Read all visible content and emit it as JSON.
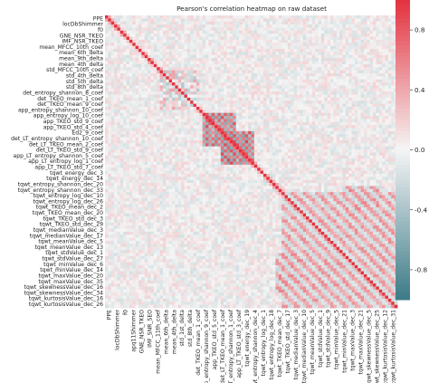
{
  "chart_data": {
    "type": "heatmap",
    "title": "Pearson's correlation heatmap on raw dataset",
    "xlabel": "",
    "ylabel": "",
    "colormap": {
      "low": "#3b7a87",
      "mid": "#f5f5f5",
      "high": "#e3323f"
    },
    "value_range": [
      -1.0,
      1.0
    ],
    "colorbar_ticks": [
      {
        "value": 0.8,
        "label": "0.8"
      },
      {
        "value": 0.4,
        "label": "0.4"
      },
      {
        "value": 0.0,
        "label": "0.0"
      },
      {
        "value": -0.4,
        "label": "-0.4"
      },
      {
        "value": -0.8,
        "label": "-0.8"
      }
    ],
    "y_tick_labels": [
      "PPE",
      "locDbShimmer",
      "f0",
      "GNE_NSR_TKEO",
      "IMF_NSR_TKEO",
      "mean_MFCC_10th_coef",
      "mean_6th_delta",
      "mean_9th_delta",
      "mean_4th_delta",
      "std_MFCC_10th_coef",
      "std_4th_delta",
      "std_5th_delta",
      "std_8th_delta",
      "det_entropy_shannon_8_coef",
      "det_TKEO_mean_1_coef",
      "det_TKEO_mean_9_coef",
      "app_entropy_shannon_10_coef",
      "app_entropy_log_10_coef",
      "app_TKEO_std_9_coef",
      "app_TKEO_std_4_coef",
      "Ed2_9_coef",
      "det_LT_entropy_shannon_10_coef",
      "det_LT_TKEO_mean_2_coef",
      "det_LT_TKEO_std_9_coef",
      "app_LT_entropy_shannon_5_coef",
      "app_LT_entropy_log_1_coef",
      "app_LT_TKEO_std_7_coef",
      "tqwt_energy_dec_3",
      "tqwt_energy_dec_14",
      "tqwt_entropy_shannon_dec_20",
      "tqwt_entropy_shannon_dec_33",
      "tqwt_entropy_log_dec_10",
      "tqwt_entropy_log_dec_26",
      "tqwt_TKEO_mean_dec_2",
      "tqwt_TKEO_mean_dec_20",
      "tqwt_TKEO_std_dec_3",
      "tqwt_TKEO_std_dec_29",
      "tqwt_medianValue_dec_3",
      "tqwt_medianValue_dec_17",
      "tqwt_meanValue_dec_5",
      "tqwt_meanValue_dec_13",
      "tqwt_stdValue_dec_1",
      "tqwt_stdValue_dec_27",
      "tqwt_minValue_dec_6",
      "tqwt_minValue_dec_14",
      "tqwt_maxValue_dec_20",
      "tqwt_maxValue_dec_35",
      "tqwt_skewnessValue_dec_16",
      "tqwt_skewnessValue_dec_34",
      "tqwt_kurtosisValue_dec_16",
      "tqwt_kurtosisValue_dec_26"
    ],
    "x_tick_labels": [
      "PPE",
      "locDbShimmer",
      "f0",
      "apq11Shimmer",
      "GNE_NSR_TKEO",
      "IMF_SNR_SEO",
      "mean_MFCC_11th_coef",
      "mean_6th_delta",
      "mean_4th_delta",
      "std_1st_delta",
      "std_8th_delta",
      "det_TKEO_mean_1_coef",
      "app_entropy_shannon_9_coef",
      "app_TKEO_std_5_coef",
      "det_LT_TKEO_mean_1_coef",
      "app_LT_entropy_shannon_1_coef",
      "app_LT_TKEO_std_3_coef",
      "tqwt_energy_dec_19",
      "tqwt_entropy_shannon_dec_4",
      "tqwt_entropy_log_dec_1",
      "tqwt_entropy_log_dec_18",
      "tqwt_TKEO_mean_dec_7",
      "tqwt_TKEO_std_dec_17",
      "tqwt_medianValue_dec_3",
      "tqwt_medianValue_dec_10",
      "tqwt_meanValue_dec_5",
      "tqwt_stdValue_dec_1",
      "tqwt_stdValue_dec_9",
      "tqwt_minValue_dec_5",
      "tqwt_minValue_dec_21",
      "tqwt_maxValue_dec_3",
      "tqwt_maxValue_dec_21",
      "tqwt_skewnessValue_dec_5",
      "tqwt_skewnessValue_dec_25",
      "tqwt_kurtosisValue_dec_12",
      "tqwt_kurtosisValue_dec_31"
    ],
    "matrix_size": 96,
    "diagonal_value": 1.0,
    "blocks": [
      {
        "rows": [
          32,
          42
        ],
        "cols": [
          32,
          42
        ],
        "value": 0.85,
        "pattern": "checker"
      },
      {
        "rows": [
          38,
          48
        ],
        "cols": [
          38,
          48
        ],
        "value": 0.9,
        "pattern": "checker"
      },
      {
        "rows": [
          58,
          95
        ],
        "cols": [
          58,
          95
        ],
        "value": 0.55,
        "pattern": "diagonal-bands"
      },
      {
        "rows": [
          56,
          66
        ],
        "cols": [
          78,
          90
        ],
        "value": 0.6,
        "pattern": "diagonal-bands"
      },
      {
        "rows": [
          78,
          90
        ],
        "cols": [
          56,
          66
        ],
        "value": 0.6,
        "pattern": "diagonal-bands"
      },
      {
        "rows": [
          18,
          30
        ],
        "cols": [
          18,
          30
        ],
        "value": 0.4,
        "pattern": "mixed"
      }
    ]
  }
}
